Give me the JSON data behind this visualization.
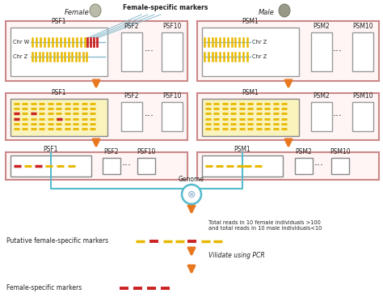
{
  "fig_width": 4.74,
  "fig_height": 3.73,
  "bg_color": "#ffffff",
  "orange": "#E87820",
  "red": "#CC2222",
  "yellow": "#E8B800",
  "blue_line": "#88BBCC",
  "box_border": "#CC8888",
  "inner_border": "#888888",
  "cyan": "#55BBCC",
  "text_color": "#222222",
  "female_label": "Female",
  "male_label": "Male",
  "fsm_label": "Female-specific markers",
  "psf1": "PSF1",
  "psf2": "PSF2",
  "psf10": "PSF10",
  "psm1": "PSM1",
  "psm2": "PSM2",
  "psm10": "PSM10",
  "chrW": "Chr W",
  "chrZ": "Chr Z",
  "genome_label": "Genome",
  "total_reads_label": "Total reads in 10 female individuals >100\nand total reads in 10 male individuals<10",
  "putative_label": "Putative female-specific markers",
  "validate_label": "Vilidate using PCR",
  "final_label": "Female-specific markers"
}
